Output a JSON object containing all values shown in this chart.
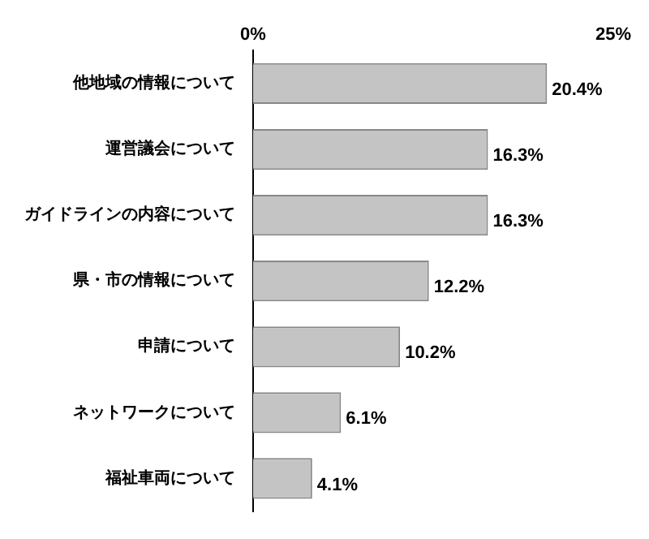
{
  "chart_data": {
    "type": "bar",
    "orientation": "horizontal",
    "categories": [
      "他地域の情報について",
      "運営議会について",
      "ガイドラインの内容について",
      "県・市の情報について",
      "申請について",
      "ネットワークについて",
      "福祉車両について"
    ],
    "values": [
      20.4,
      16.3,
      16.3,
      12.2,
      10.2,
      6.1,
      4.1
    ],
    "value_labels": [
      "20.4%",
      "16.3%",
      "16.3%",
      "12.2%",
      "10.2%",
      "6.1%",
      "4.1%"
    ],
    "color": "#c4c4c4",
    "xlim": [
      0,
      25
    ],
    "xticks": [
      {
        "value": 0,
        "label": "0%"
      },
      {
        "value": 25,
        "label": "25%"
      }
    ]
  }
}
